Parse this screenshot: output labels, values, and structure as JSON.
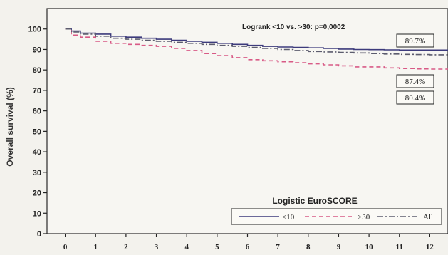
{
  "chart_data": {
    "type": "line",
    "title": "",
    "xlabel": "",
    "ylabel": "Overall survival (%)",
    "xlim": [
      -0.6,
      12.6
    ],
    "ylim": [
      0,
      110
    ],
    "x_ticks": [
      "0",
      "1",
      "2",
      "3",
      "4",
      "5",
      "6",
      "7",
      "8",
      "9",
      "10",
      "11",
      "12"
    ],
    "y_ticks": [
      "0",
      "10",
      "20",
      "30",
      "40",
      "50",
      "60",
      "70",
      "80",
      "90",
      "100"
    ],
    "grid": false,
    "annotation": "Logrank <10 vs. >30: p=0,0002",
    "value_labels": [
      "89.7%",
      "87.4%",
      "80.4%"
    ],
    "legend": {
      "title": "Logistic EuroSCORE",
      "placement": "bottom-right",
      "entries": [
        "<10",
        ">30",
        "All"
      ]
    },
    "series": [
      {
        "name": "<10",
        "color": "#3d3b7c",
        "dash": "solid",
        "x": [
          0,
          0.2,
          0.5,
          1,
          1.5,
          2,
          2.5,
          3,
          3.5,
          4,
          4.5,
          5,
          5.5,
          6,
          6.5,
          7,
          7.5,
          8,
          8.5,
          9,
          9.5,
          10,
          10.5,
          11,
          11.5,
          12,
          12.6
        ],
        "y": [
          100,
          99,
          98,
          97.5,
          96.5,
          96,
          95.5,
          95,
          94.5,
          94,
          93.5,
          93,
          92.5,
          92,
          91.5,
          91.2,
          91,
          90.8,
          90.5,
          90.2,
          90,
          89.9,
          89.8,
          89.7,
          89.7,
          89.7,
          89.6
        ]
      },
      {
        "name": ">30",
        "color": "#d85a86",
        "dash": "dash",
        "x": [
          0,
          0.2,
          0.5,
          1,
          1.5,
          2,
          2.5,
          3,
          3.5,
          4,
          4.5,
          5,
          5.5,
          6,
          6.5,
          7,
          7.5,
          8,
          8.5,
          9,
          9.5,
          10,
          10.5,
          11,
          11.5,
          12,
          12.6
        ],
        "y": [
          100,
          97,
          96,
          94,
          93,
          92.5,
          92,
          91.5,
          90.5,
          89.5,
          88,
          87,
          86,
          85,
          84.5,
          84,
          83.5,
          83,
          82.5,
          82,
          81.5,
          81.5,
          81,
          80.7,
          80.5,
          80.4,
          80.4
        ]
      },
      {
        "name": "All",
        "color": "#5c5c6e",
        "dash": "dashdot",
        "x": [
          0,
          0.2,
          0.5,
          1,
          1.5,
          2,
          2.5,
          3,
          3.5,
          4,
          4.5,
          5,
          5.5,
          6,
          6.5,
          7,
          7.5,
          8,
          8.5,
          9,
          9.5,
          10,
          10.5,
          11,
          11.5,
          12,
          12.6
        ],
        "y": [
          100,
          98.5,
          97.5,
          96.5,
          95.5,
          95,
          94.5,
          94,
          93.5,
          93,
          92.5,
          92,
          91.5,
          91,
          90.5,
          90,
          89.5,
          89,
          88.8,
          88.6,
          88.3,
          88,
          87.8,
          87.6,
          87.5,
          87.4,
          87.3
        ]
      }
    ]
  }
}
